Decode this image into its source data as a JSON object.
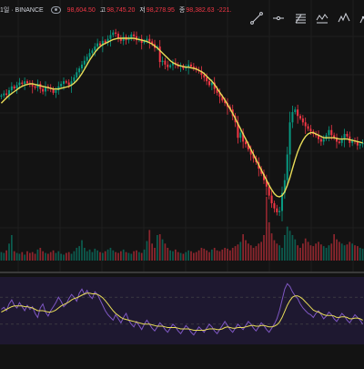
{
  "legend": {
    "symbol": "1일 · BINANCE",
    "items": [
      {
        "label": "",
        "value": "98,604.50"
      },
      {
        "label": "고",
        "value": "98,745.20"
      },
      {
        "label": "저",
        "value": "98,278.95"
      },
      {
        "label": "종",
        "value": "98,382.63"
      },
      {
        "label": "",
        "value": "-221."
      }
    ]
  },
  "toolbar": {
    "tools": [
      "trend-line-icon",
      "horizontal-line-icon",
      "fib-retracement-icon",
      "pattern-icon",
      "elliott-wave-icon",
      "projection-icon"
    ]
  },
  "colors": {
    "background": "#131313",
    "up": "#089981",
    "down": "#f23645",
    "moving_average": "#e8dc58",
    "indicator_line": "#7e57c2",
    "indicator_signal": "#e8dc58",
    "indicator_band": "#1e1830"
  },
  "chart_data": {
    "type": "candlestick",
    "close": [
      52,
      55,
      53,
      60,
      66,
      63,
      68,
      72,
      70,
      74,
      71,
      69,
      66,
      64,
      70,
      62,
      58,
      66,
      64,
      62,
      56,
      60,
      66,
      70,
      74,
      72,
      68,
      74,
      80,
      88,
      94,
      100,
      106,
      112,
      118,
      122,
      128,
      133,
      130,
      137,
      134,
      140,
      146,
      150,
      148,
      141,
      137,
      143,
      138,
      140,
      147,
      144,
      138,
      140,
      134,
      137,
      140,
      136,
      132,
      126,
      128,
      104,
      106,
      100,
      96,
      99,
      103,
      100,
      97,
      98,
      94,
      96,
      100,
      97,
      95,
      92,
      90,
      84,
      80,
      74,
      68,
      72,
      62,
      56,
      50,
      44,
      40,
      34,
      30,
      20,
      10,
      -14,
      -6,
      -20,
      -24,
      -32,
      -40,
      -46,
      -52,
      -62,
      -70,
      -80,
      -90,
      -104,
      -116,
      -124,
      -130,
      -128,
      -100,
      -80,
      -40,
      10,
      26,
      30,
      20,
      16,
      10,
      4,
      0,
      -4,
      -8,
      -10,
      -16,
      -20,
      -16,
      -10,
      -2,
      -10,
      -14,
      -20,
      -22,
      -16,
      -8,
      -12,
      -22,
      -18,
      -20,
      -26,
      -24,
      -22
    ],
    "signal": [
      40,
      44,
      48,
      52,
      55,
      58,
      61,
      64,
      66,
      68,
      69,
      70,
      70,
      69,
      68,
      67,
      66,
      65,
      64,
      63,
      62,
      62,
      62,
      63,
      64,
      65,
      66,
      68,
      71,
      75,
      80,
      86,
      93,
      100,
      107,
      113,
      119,
      124,
      128,
      131,
      133,
      135,
      137,
      139,
      140,
      141,
      141,
      141,
      141,
      141,
      141,
      141,
      140,
      139,
      138,
      137,
      136,
      134,
      132,
      129,
      126,
      122,
      118,
      114,
      110,
      106,
      103,
      101,
      99,
      98,
      97,
      96,
      96,
      95,
      94,
      93,
      91,
      89,
      86,
      82,
      78,
      74,
      69,
      63,
      57,
      51,
      45,
      38,
      31,
      24,
      16,
      8,
      0,
      -8,
      -16,
      -24,
      -32,
      -40,
      -48,
      -56,
      -64,
      -72,
      -80,
      -88,
      -95,
      -101,
      -105,
      -106,
      -104,
      -98,
      -88,
      -76,
      -62,
      -48,
      -36,
      -26,
      -18,
      -12,
      -8,
      -6,
      -6,
      -8,
      -10,
      -12,
      -14,
      -14,
      -14,
      -14,
      -14,
      -15,
      -16,
      -16,
      -16,
      -16,
      -17,
      -18,
      -19,
      -20,
      -21,
      -22
    ],
    "volume": [
      20,
      18,
      24,
      40,
      60,
      22,
      18,
      16,
      20,
      14,
      22,
      18,
      20,
      16,
      26,
      30,
      22,
      18,
      16,
      20,
      24,
      18,
      22,
      16,
      14,
      18,
      20,
      16,
      22,
      30,
      34,
      48,
      30,
      22,
      26,
      20,
      28,
      24,
      20,
      18,
      22,
      26,
      30,
      24,
      20,
      18,
      22,
      26,
      20,
      18,
      16,
      22,
      24,
      20,
      18,
      26,
      46,
      72,
      40,
      30,
      60,
      62,
      50,
      40,
      30,
      24,
      22,
      26,
      20,
      18,
      16,
      20,
      24,
      22,
      18,
      20,
      24,
      30,
      28,
      24,
      20,
      26,
      30,
      24,
      22,
      26,
      30,
      28,
      24,
      30,
      34,
      38,
      44,
      62,
      48,
      40,
      36,
      30,
      34,
      40,
      44,
      60,
      150,
      90,
      64,
      48,
      40,
      36,
      30,
      60,
      80,
      70,
      60,
      50,
      36,
      30,
      40,
      52,
      44,
      36,
      34,
      40,
      44,
      38,
      34,
      30,
      36,
      40,
      62,
      50,
      44,
      40,
      36,
      38,
      44,
      40,
      36,
      34,
      30,
      28
    ],
    "oscillator": [
      0.52,
      0.55,
      0.5,
      0.6,
      0.66,
      0.58,
      0.54,
      0.62,
      0.56,
      0.5,
      0.58,
      0.52,
      0.56,
      0.46,
      0.4,
      0.54,
      0.6,
      0.48,
      0.42,
      0.5,
      0.56,
      0.62,
      0.7,
      0.64,
      0.56,
      0.6,
      0.68,
      0.74,
      0.7,
      0.64,
      0.76,
      0.82,
      0.74,
      0.8,
      0.72,
      0.68,
      0.78,
      0.74,
      0.66,
      0.58,
      0.5,
      0.44,
      0.4,
      0.36,
      0.44,
      0.38,
      0.32,
      0.4,
      0.46,
      0.36,
      0.3,
      0.26,
      0.34,
      0.28,
      0.22,
      0.3,
      0.36,
      0.3,
      0.24,
      0.2,
      0.26,
      0.32,
      0.28,
      0.22,
      0.18,
      0.24,
      0.3,
      0.26,
      0.2,
      0.16,
      0.22,
      0.28,
      0.24,
      0.18,
      0.14,
      0.2,
      0.26,
      0.22,
      0.18,
      0.24,
      0.3,
      0.26,
      0.2,
      0.16,
      0.22,
      0.28,
      0.34,
      0.28,
      0.22,
      0.18,
      0.24,
      0.3,
      0.26,
      0.22,
      0.28,
      0.34,
      0.3,
      0.24,
      0.2,
      0.26,
      0.32,
      0.28,
      0.22,
      0.18,
      0.24,
      0.3,
      0.38,
      0.5,
      0.66,
      0.82,
      0.9,
      0.86,
      0.78,
      0.72,
      0.68,
      0.6,
      0.54,
      0.5,
      0.46,
      0.44,
      0.4,
      0.46,
      0.5,
      0.44,
      0.38,
      0.42,
      0.48,
      0.44,
      0.38,
      0.34,
      0.4,
      0.46,
      0.42,
      0.36,
      0.32,
      0.38,
      0.44,
      0.4,
      0.36,
      0.3
    ],
    "oscillator_signal": [
      0.48,
      0.5,
      0.52,
      0.54,
      0.56,
      0.57,
      0.57,
      0.57,
      0.57,
      0.56,
      0.56,
      0.55,
      0.54,
      0.52,
      0.5,
      0.5,
      0.5,
      0.49,
      0.48,
      0.48,
      0.49,
      0.51,
      0.54,
      0.57,
      0.59,
      0.61,
      0.63,
      0.66,
      0.68,
      0.69,
      0.71,
      0.73,
      0.75,
      0.76,
      0.76,
      0.75,
      0.75,
      0.74,
      0.72,
      0.69,
      0.65,
      0.6,
      0.55,
      0.5,
      0.46,
      0.43,
      0.4,
      0.38,
      0.37,
      0.36,
      0.35,
      0.34,
      0.33,
      0.32,
      0.31,
      0.3,
      0.3,
      0.3,
      0.29,
      0.28,
      0.27,
      0.27,
      0.27,
      0.26,
      0.25,
      0.25,
      0.25,
      0.25,
      0.24,
      0.23,
      0.23,
      0.23,
      0.23,
      0.22,
      0.21,
      0.21,
      0.21,
      0.21,
      0.21,
      0.22,
      0.23,
      0.23,
      0.23,
      0.22,
      0.22,
      0.23,
      0.25,
      0.26,
      0.25,
      0.24,
      0.24,
      0.25,
      0.25,
      0.25,
      0.26,
      0.27,
      0.28,
      0.28,
      0.27,
      0.27,
      0.28,
      0.28,
      0.27,
      0.26,
      0.26,
      0.27,
      0.29,
      0.33,
      0.4,
      0.49,
      0.58,
      0.65,
      0.7,
      0.72,
      0.72,
      0.7,
      0.67,
      0.63,
      0.59,
      0.55,
      0.51,
      0.49,
      0.48,
      0.46,
      0.44,
      0.43,
      0.43,
      0.43,
      0.42,
      0.4,
      0.4,
      0.41,
      0.41,
      0.4,
      0.38,
      0.38,
      0.39,
      0.39,
      0.38,
      0.36
    ]
  }
}
